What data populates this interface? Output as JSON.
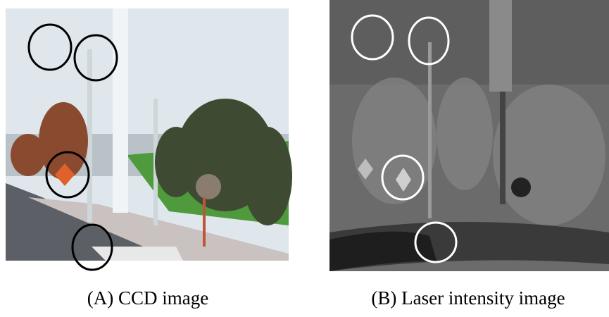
{
  "figure": {
    "panels": [
      {
        "caption": "(A) CCD image"
      },
      {
        "caption": "(B) Laser intensity image"
      }
    ]
  }
}
